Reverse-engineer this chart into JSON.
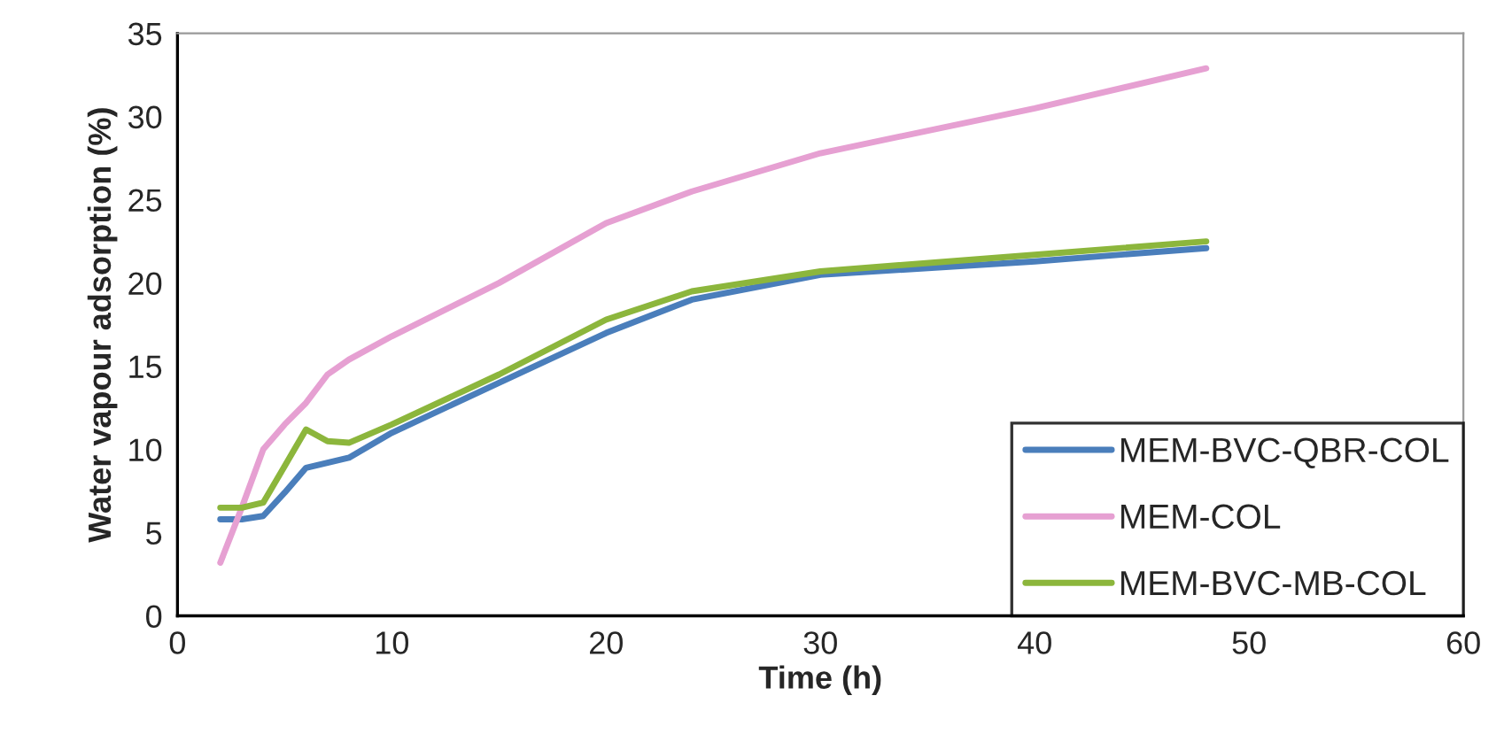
{
  "chart_data": {
    "type": "line",
    "xlabel": "Time (h)",
    "ylabel": "Water vapour adsorption (%)",
    "xlim": [
      0,
      60
    ],
    "xticks": [
      0,
      10,
      20,
      30,
      40,
      50,
      60
    ],
    "ylim": [
      0,
      35
    ],
    "yticks": [
      0,
      5,
      10,
      15,
      20,
      25,
      30,
      35
    ],
    "grid": false,
    "legend": "bottom right",
    "marker": "none",
    "line_style": "solid",
    "series": [
      {
        "name": "MEM-BVC-QBR-COL",
        "color": "#4a7ebb",
        "x": [
          2,
          3,
          4,
          5,
          6,
          7,
          8,
          10,
          15,
          20,
          24,
          30,
          40,
          48
        ],
        "values": [
          5.8,
          5.8,
          6.0,
          7.4,
          8.9,
          9.2,
          9.5,
          11,
          14,
          17,
          19,
          20.5,
          21.3,
          22.1
        ]
      },
      {
        "name": "MEM-COL",
        "color": "#e6a0d2",
        "x": [
          2,
          3,
          4,
          5,
          6,
          7,
          8,
          10,
          15,
          20,
          24,
          30,
          40,
          48
        ],
        "values": [
          3.2,
          6.5,
          10,
          11.5,
          12.8,
          14.5,
          15.4,
          16.8,
          20,
          23.6,
          25.5,
          27.8,
          30.5,
          32.9
        ]
      },
      {
        "name": "MEM-BVC-MB-COL",
        "color": "#8cb63c",
        "x": [
          2,
          3,
          4,
          5,
          6,
          7,
          8,
          10,
          15,
          20,
          24,
          30,
          40,
          48
        ],
        "values": [
          6.5,
          6.5,
          6.8,
          9,
          11.2,
          10.5,
          10.4,
          11.5,
          14.5,
          17.8,
          19.5,
          20.7,
          21.7,
          22.5
        ]
      }
    ]
  }
}
